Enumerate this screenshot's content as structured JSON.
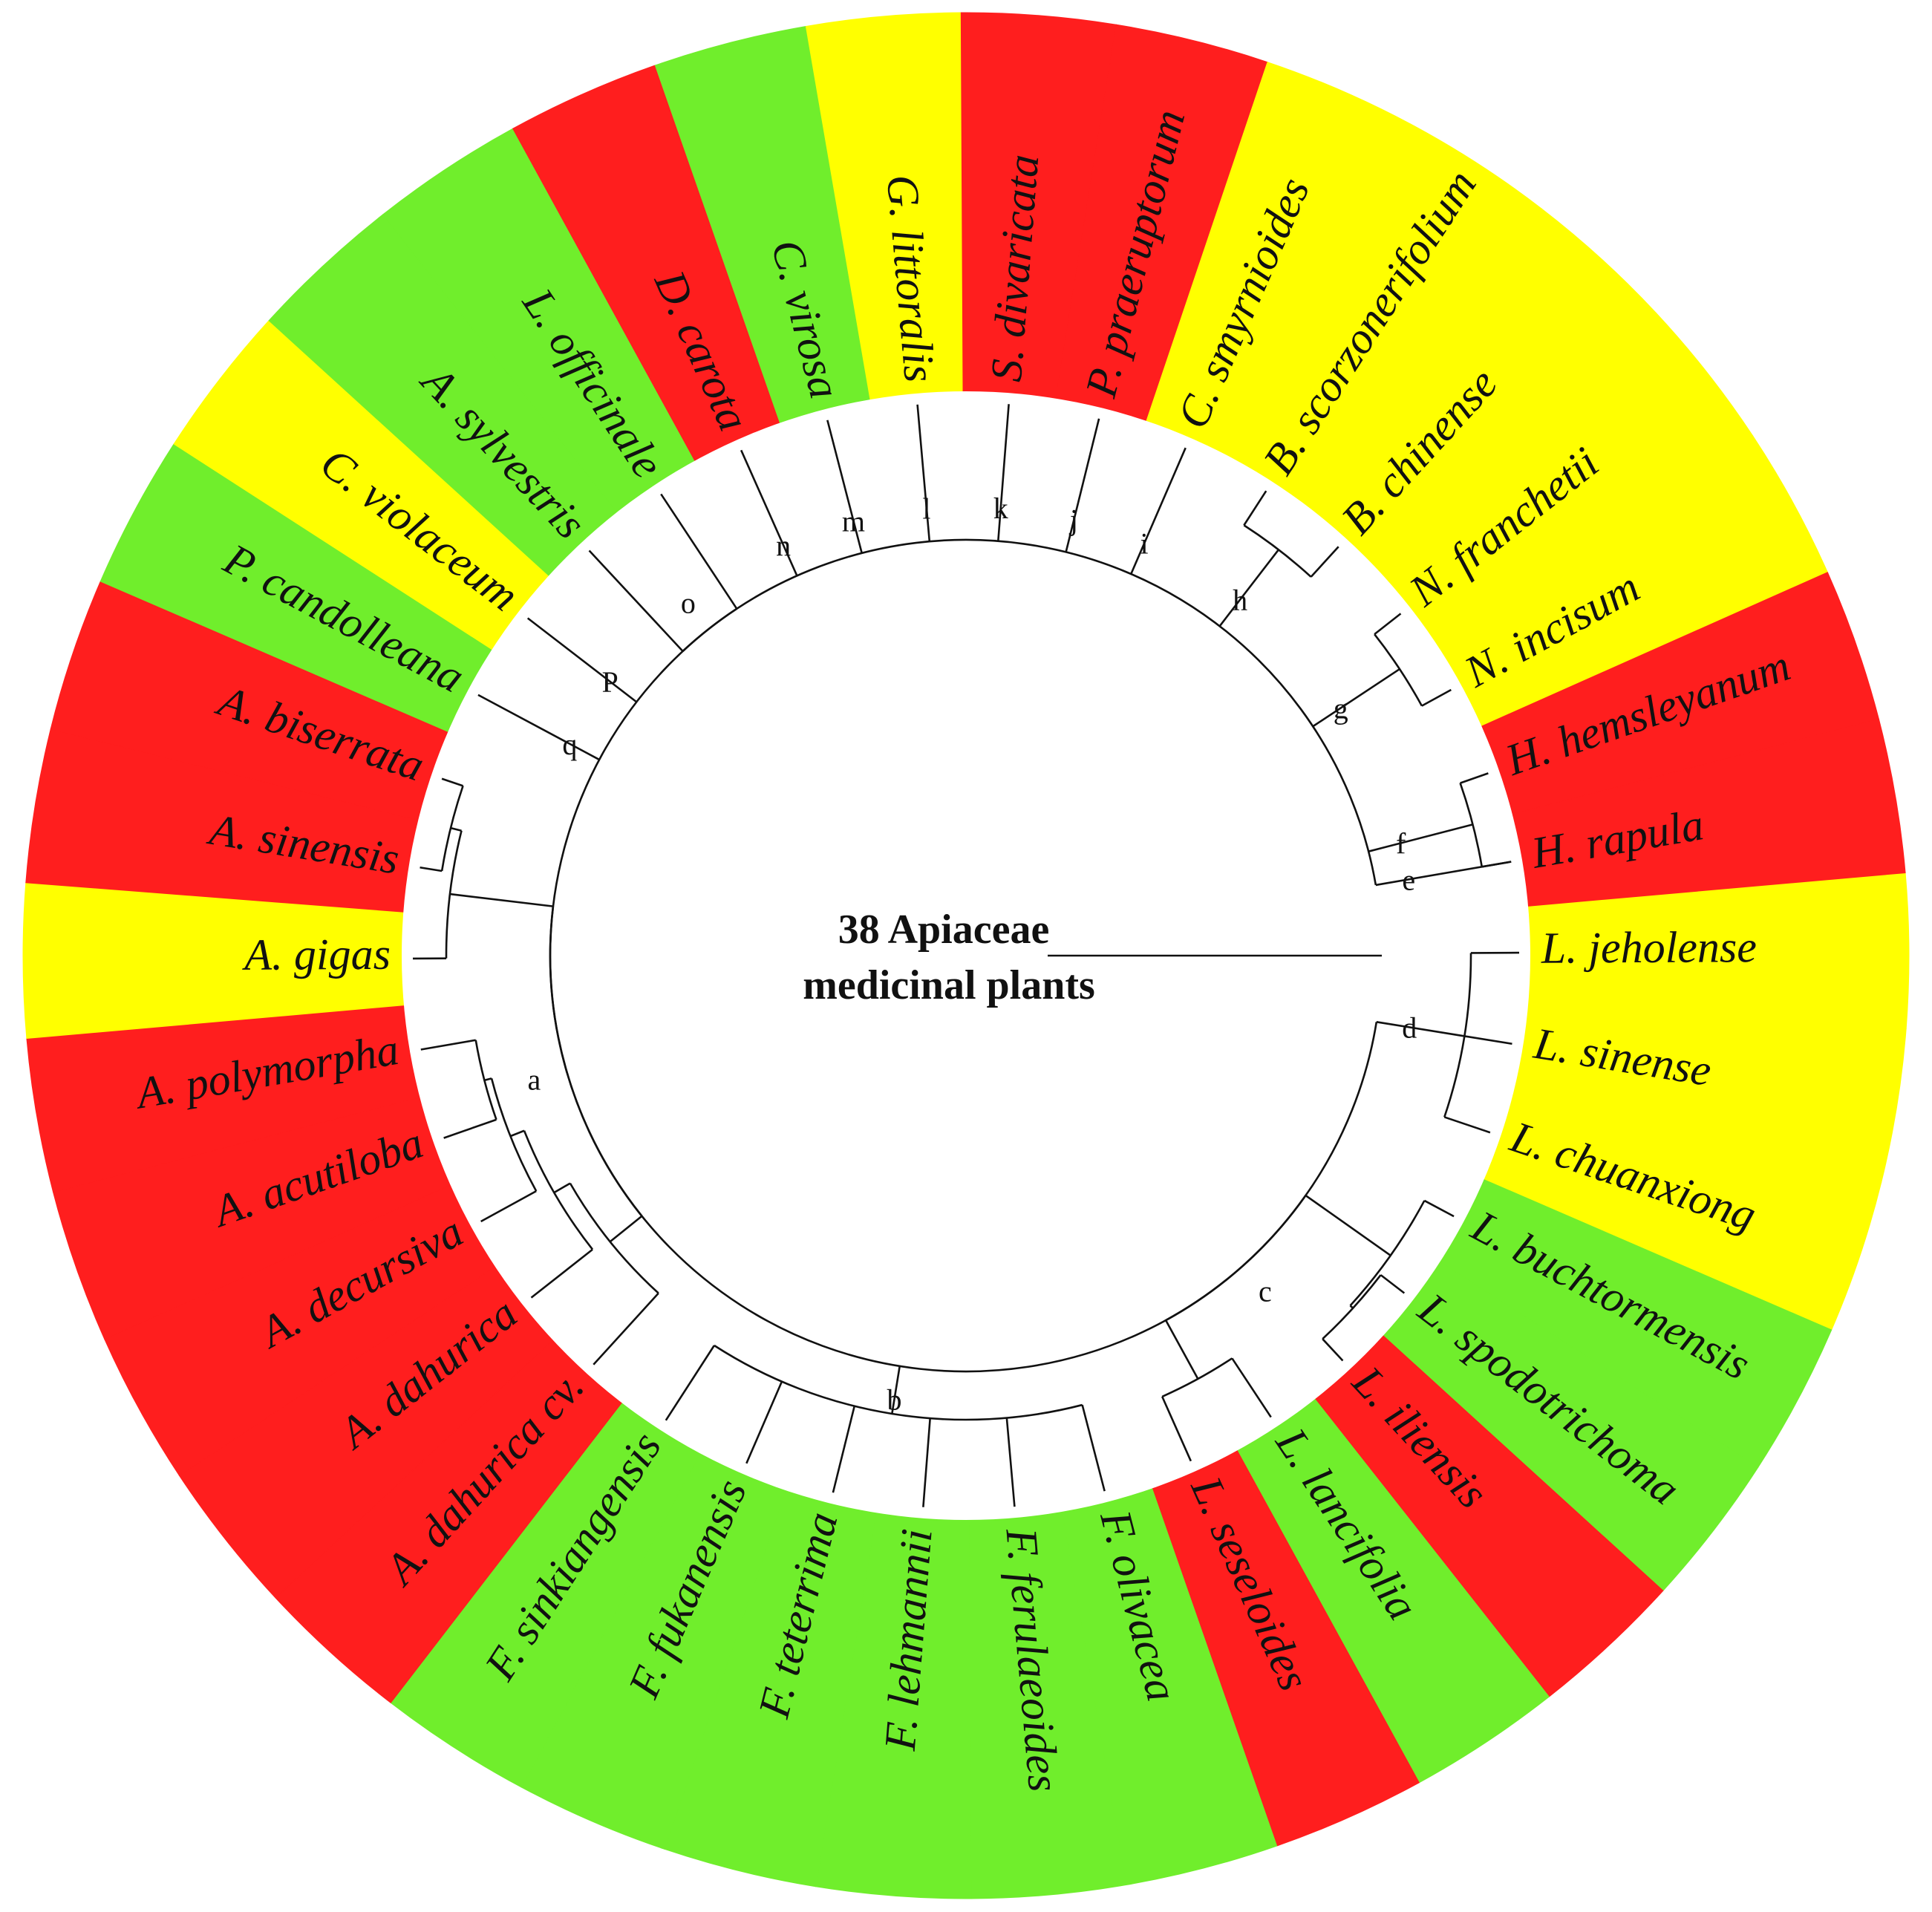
{
  "title": [
    "38 Apiaceae",
    "medicinal plants"
  ],
  "colors": {
    "red": "#ff1e1e",
    "green": "#70ee2c",
    "yellow": "#ffff00",
    "line": "#111111"
  },
  "species": [
    {
      "name": "L. jeholense",
      "color": "yellow"
    },
    {
      "name": "L. sinense",
      "color": "yellow"
    },
    {
      "name": "L. chuanxiong",
      "color": "yellow"
    },
    {
      "name": "L. buchtormensis",
      "color": "green"
    },
    {
      "name": "L. spodotrichoma",
      "color": "green"
    },
    {
      "name": "L. iliensis",
      "color": "red"
    },
    {
      "name": "L. lancifolia",
      "color": "green"
    },
    {
      "name": "L. seseloides",
      "color": "red"
    },
    {
      "name": "F. olivacea",
      "color": "green"
    },
    {
      "name": "F. ferulaeoides",
      "color": "green"
    },
    {
      "name": "F. lehmannii",
      "color": "green"
    },
    {
      "name": "F. teterrima",
      "color": "green"
    },
    {
      "name": "F. fukanensis",
      "color": "green"
    },
    {
      "name": "F. sinkiangensis",
      "color": "green"
    },
    {
      "name": "A. dahurica cv.",
      "color": "red"
    },
    {
      "name": "A. dahurica",
      "color": "red"
    },
    {
      "name": "A. decursiva",
      "color": "red"
    },
    {
      "name": "A. acutiloba",
      "color": "red"
    },
    {
      "name": "A. polymorpha",
      "color": "red"
    },
    {
      "name": "A. gigas",
      "color": "yellow"
    },
    {
      "name": "A. sinensis",
      "color": "red"
    },
    {
      "name": "A. biserrata",
      "color": "red"
    },
    {
      "name": "P. candolleana",
      "color": "green"
    },
    {
      "name": "C. violaceum",
      "color": "yellow"
    },
    {
      "name": "A. sylvestris",
      "color": "green"
    },
    {
      "name": "L. officinale",
      "color": "green"
    },
    {
      "name": "D. carota",
      "color": "red"
    },
    {
      "name": "C. virosa",
      "color": "green"
    },
    {
      "name": "G. littoralis",
      "color": "yellow"
    },
    {
      "name": "S. divaricata",
      "color": "red"
    },
    {
      "name": "P. praeruptorum",
      "color": "red"
    },
    {
      "name": "C. smyrnioides",
      "color": "yellow"
    },
    {
      "name": "B. scorzonerifolium",
      "color": "yellow"
    },
    {
      "name": "B. chinense",
      "color": "yellow"
    },
    {
      "name": "N. franchetii",
      "color": "yellow"
    },
    {
      "name": "N. incisum",
      "color": "yellow"
    },
    {
      "name": "H. hemsleyanum",
      "color": "red"
    },
    {
      "name": "H. rapula",
      "color": "red"
    }
  ],
  "node_labels": [
    "a",
    "b",
    "c",
    "d",
    "e",
    "f",
    "g",
    "h",
    "i",
    "j",
    "k",
    "l",
    "m",
    "n",
    "o",
    "P",
    "q"
  ]
}
